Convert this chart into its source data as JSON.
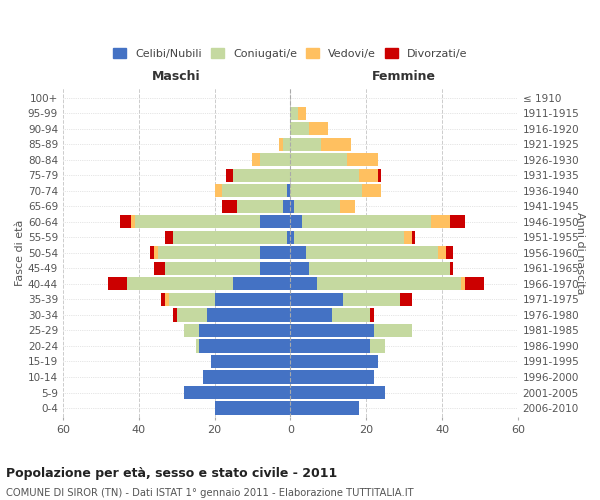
{
  "age_groups": [
    "0-4",
    "5-9",
    "10-14",
    "15-19",
    "20-24",
    "25-29",
    "30-34",
    "35-39",
    "40-44",
    "45-49",
    "50-54",
    "55-59",
    "60-64",
    "65-69",
    "70-74",
    "75-79",
    "80-84",
    "85-89",
    "90-94",
    "95-99",
    "100+"
  ],
  "birth_years": [
    "2006-2010",
    "2001-2005",
    "1996-2000",
    "1991-1995",
    "1986-1990",
    "1981-1985",
    "1976-1980",
    "1971-1975",
    "1966-1970",
    "1961-1965",
    "1956-1960",
    "1951-1955",
    "1946-1950",
    "1941-1945",
    "1936-1940",
    "1931-1935",
    "1926-1930",
    "1921-1925",
    "1916-1920",
    "1911-1915",
    "≤ 1910"
  ],
  "males": {
    "celibe": [
      20,
      28,
      23,
      21,
      24,
      24,
      22,
      20,
      15,
      8,
      8,
      1,
      8,
      2,
      1,
      0,
      0,
      0,
      0,
      0,
      0
    ],
    "coniugato": [
      0,
      0,
      0,
      0,
      1,
      4,
      8,
      12,
      28,
      25,
      27,
      30,
      33,
      12,
      17,
      15,
      8,
      2,
      0,
      0,
      0
    ],
    "vedovo": [
      0,
      0,
      0,
      0,
      0,
      0,
      0,
      1,
      0,
      0,
      1,
      0,
      1,
      0,
      2,
      0,
      2,
      1,
      0,
      0,
      0
    ],
    "divorziato": [
      0,
      0,
      0,
      0,
      0,
      0,
      1,
      1,
      5,
      3,
      1,
      2,
      3,
      4,
      0,
      2,
      0,
      0,
      0,
      0,
      0
    ]
  },
  "females": {
    "nubile": [
      18,
      25,
      22,
      23,
      21,
      22,
      11,
      14,
      7,
      5,
      4,
      1,
      3,
      1,
      0,
      0,
      0,
      0,
      0,
      0,
      0
    ],
    "coniugata": [
      0,
      0,
      0,
      0,
      4,
      10,
      10,
      15,
      38,
      37,
      35,
      29,
      34,
      12,
      19,
      18,
      15,
      8,
      5,
      2,
      0
    ],
    "vedova": [
      0,
      0,
      0,
      0,
      0,
      0,
      0,
      0,
      1,
      0,
      2,
      2,
      5,
      4,
      5,
      5,
      8,
      8,
      5,
      2,
      0
    ],
    "divorziata": [
      0,
      0,
      0,
      0,
      0,
      0,
      1,
      3,
      5,
      1,
      2,
      1,
      4,
      0,
      0,
      1,
      0,
      0,
      0,
      0,
      0
    ]
  },
  "colors": {
    "celibe": "#4472c4",
    "coniugato": "#c5d9a0",
    "vedovo": "#ffc060",
    "divorziato": "#cc0000"
  },
  "xlim": 60,
  "title1": "Popolazione per età, sesso e stato civile - 2011",
  "title2": "COMUNE DI SIROR (TN) - Dati ISTAT 1° gennaio 2011 - Elaborazione TUTTITALIA.IT",
  "xlabel_left": "Maschi",
  "xlabel_right": "Femmine",
  "ylabel_left": "Fasce di età",
  "ylabel_right": "Anni di nascita",
  "bg_color": "#ffffff",
  "grid_color": "#cccccc",
  "bar_height": 0.85
}
